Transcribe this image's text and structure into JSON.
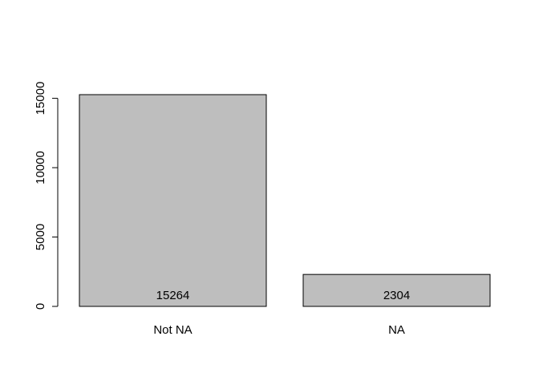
{
  "chart_data": {
    "type": "bar",
    "categories": [
      "Not NA",
      "NA"
    ],
    "values": [
      15264,
      2304
    ],
    "data_labels": [
      "15264",
      "2304"
    ],
    "y_ticks": [
      0,
      5000,
      10000,
      15000
    ],
    "y_tick_labels": [
      "0",
      "5000",
      "10000",
      "15000"
    ],
    "ylim": [
      0,
      15264
    ],
    "grid": false,
    "legend": "none",
    "colors": {
      "bar_fill": "#bebebe",
      "bar_stroke": "#000000",
      "axis": "#000000",
      "text": "#000000"
    }
  }
}
